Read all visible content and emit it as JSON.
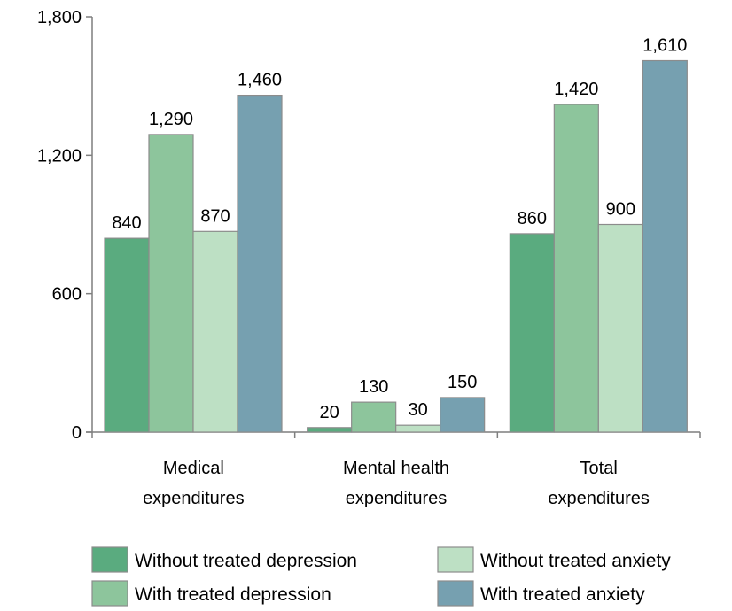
{
  "chart_data": {
    "type": "bar",
    "categories": [
      "Medical expenditures",
      "Mental health expenditures",
      "Total expenditures"
    ],
    "category_lines": [
      [
        "Medical",
        "expenditures"
      ],
      [
        "Mental health",
        "expenditures"
      ],
      [
        "Total",
        "expenditures"
      ]
    ],
    "series": [
      {
        "name": "Without treated depression",
        "values": [
          840,
          20,
          860
        ],
        "color": "#5aab7f"
      },
      {
        "name": "With treated depression",
        "values": [
          1290,
          130,
          1420
        ],
        "color": "#8dc59c"
      },
      {
        "name": "Without treated anxiety",
        "values": [
          870,
          30,
          900
        ],
        "color": "#bde0c4"
      },
      {
        "name": "With treated anxiety",
        "values": [
          1460,
          150,
          1610
        ],
        "color": "#76a0b0"
      }
    ],
    "data_labels": [
      [
        "840",
        "20",
        "860"
      ],
      [
        "1,290",
        "130",
        "1,420"
      ],
      [
        "870",
        "30",
        "900"
      ],
      [
        "1,460",
        "150",
        "1,610"
      ]
    ],
    "yticks": [
      0,
      600,
      1200,
      1800
    ],
    "ytick_labels": [
      "0",
      "600",
      "1,200",
      "1,800"
    ],
    "ylim": [
      0,
      1800
    ],
    "grid": false,
    "legend_position": "bottom",
    "bar_edge_color": "#8c8c8c",
    "axis_color": "#7f7f7f"
  }
}
